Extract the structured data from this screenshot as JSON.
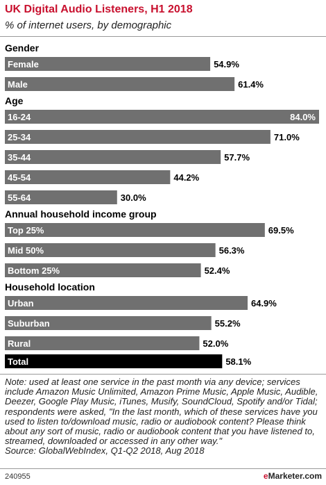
{
  "header": {
    "title": "UK Digital Audio Listeners, H1 2018",
    "subtitle": "% of internet users, by demographic"
  },
  "chart_data": {
    "type": "bar",
    "orientation": "horizontal",
    "value_suffix": "%",
    "bar_color": "#707070",
    "total_color": "#000000",
    "xlim": [
      0,
      84.0
    ],
    "groups": [
      {
        "name": "Gender",
        "categories": [
          "Female",
          "Male"
        ],
        "values": [
          54.9,
          61.4
        ]
      },
      {
        "name": "Age",
        "categories": [
          "16-24",
          "25-34",
          "35-44",
          "45-54",
          "55-64"
        ],
        "values": [
          84.0,
          71.0,
          57.7,
          44.2,
          30.0
        ]
      },
      {
        "name": "Annual household income group",
        "categories": [
          "Top 25%",
          "Mid 50%",
          "Bottom 25%"
        ],
        "values": [
          69.5,
          56.3,
          52.4
        ]
      },
      {
        "name": "Household location",
        "categories": [
          "Urban",
          "Suburban",
          "Rural"
        ],
        "values": [
          64.9,
          55.2,
          52.0
        ]
      }
    ],
    "total": {
      "category": "Total",
      "value": 58.1
    }
  },
  "footer": {
    "note": "Note: used at least one service in the past month via any device; services include Amazon Music Unlimited, Amazon Prime Music, Apple Music, Audible, Deezer, Google Play Music, iTunes, Musify, SoundCloud, Spotify and/or Tidal; respondents were asked, \"In the last month, which of these services have you used to listen to/download music, radio or audiobook content? Please think about any sort of music, radio or audiobook content that you have listened to, streamed, downloaded or accessed in any other way.\"",
    "source": "Source: GlobalWebIndex, Q1-Q2 2018, Aug 2018",
    "chart_id": "240955",
    "brand_prefix": "e",
    "brand_name": "Marketer",
    "brand_suffix": ".com"
  }
}
